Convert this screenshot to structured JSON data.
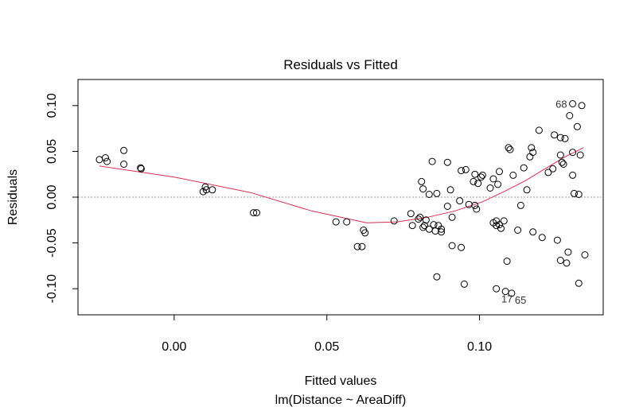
{
  "chart_data": {
    "type": "scatter",
    "title": "Residuals vs Fitted",
    "xlabel": "Fitted values",
    "subtitle": "lm(Distance ~ AreaDiff)",
    "ylabel": "Residuals",
    "xlim": [
      -0.0315,
      0.1405
    ],
    "ylim": [
      -0.1285,
      0.1285
    ],
    "x_ticks": [
      0.0,
      0.05,
      0.1
    ],
    "x_tick_labels": [
      "0.00",
      "0.05",
      "0.10"
    ],
    "y_ticks": [
      -0.1,
      -0.05,
      0.0,
      0.05,
      0.1
    ],
    "y_tick_labels": [
      "-0.10",
      "-0.05",
      "0.00",
      "0.05",
      "0.10"
    ],
    "reference_line_y": 0,
    "points": [
      [
        -0.0245,
        0.041
      ],
      [
        -0.0225,
        0.043
      ],
      [
        -0.022,
        0.039
      ],
      [
        -0.0165,
        0.051
      ],
      [
        -0.0165,
        0.036
      ],
      [
        -0.011,
        0.032
      ],
      [
        -0.0108,
        0.031
      ],
      [
        0.0095,
        0.006
      ],
      [
        0.0105,
        0.008
      ],
      [
        0.0102,
        0.011
      ],
      [
        0.0125,
        0.008
      ],
      [
        0.026,
        -0.017
      ],
      [
        0.027,
        -0.017
      ],
      [
        0.053,
        -0.027
      ],
      [
        0.0565,
        -0.027
      ],
      [
        0.06,
        -0.054
      ],
      [
        0.0615,
        -0.054
      ],
      [
        0.0625,
        -0.039
      ],
      [
        0.062,
        -0.036
      ],
      [
        0.072,
        -0.026
      ],
      [
        0.0775,
        -0.018
      ],
      [
        0.078,
        -0.031
      ],
      [
        0.08,
        -0.024
      ],
      [
        0.0805,
        -0.022
      ],
      [
        0.0815,
        -0.033
      ],
      [
        0.0825,
        -0.025
      ],
      [
        0.082,
        -0.031
      ],
      [
        0.0815,
        0.009
      ],
      [
        0.081,
        0.017
      ],
      [
        0.0835,
        0.003
      ],
      [
        0.0835,
        -0.035
      ],
      [
        0.0845,
        0.039
      ],
      [
        0.085,
        -0.03
      ],
      [
        0.0855,
        -0.037
      ],
      [
        0.086,
        0.004
      ],
      [
        0.0865,
        -0.031
      ],
      [
        0.0875,
        -0.038
      ],
      [
        0.0875,
        -0.035
      ],
      [
        0.086,
        -0.087
      ],
      [
        0.0895,
        0.038
      ],
      [
        0.0895,
        -0.01
      ],
      [
        0.0905,
        0.008
      ],
      [
        0.091,
        -0.022
      ],
      [
        0.091,
        -0.053
      ],
      [
        0.0935,
        -0.004
      ],
      [
        0.094,
        0.029
      ],
      [
        0.0955,
        0.03
      ],
      [
        0.0965,
        -0.008
      ],
      [
        0.094,
        -0.055
      ],
      [
        0.095,
        -0.095
      ],
      [
        0.098,
        0.017
      ],
      [
        0.0985,
        -0.009
      ],
      [
        0.0985,
        0.025
      ],
      [
        0.099,
        -0.013
      ],
      [
        0.0995,
        0.015
      ],
      [
        0.1005,
        0.022
      ],
      [
        0.101,
        0.024
      ],
      [
        0.1035,
        0.01
      ],
      [
        0.1045,
        0.02
      ],
      [
        0.1045,
        -0.028
      ],
      [
        0.1055,
        -0.026
      ],
      [
        0.1055,
        -0.031
      ],
      [
        0.106,
        0.014
      ],
      [
        0.1065,
        0.028
      ],
      [
        0.1065,
        -0.03
      ],
      [
        0.107,
        -0.034
      ],
      [
        0.108,
        -0.026
      ],
      [
        0.109,
        -0.07
      ],
      [
        0.1085,
        -0.103
      ],
      [
        0.1055,
        -0.1
      ],
      [
        0.1095,
        0.054
      ],
      [
        0.11,
        0.052
      ],
      [
        0.111,
        0.024
      ],
      [
        0.1125,
        -0.036
      ],
      [
        0.1135,
        -0.009
      ],
      [
        0.1145,
        0.032
      ],
      [
        0.1155,
        0.008
      ],
      [
        0.1165,
        0.044
      ],
      [
        0.117,
        0.054
      ],
      [
        0.1175,
        0.049
      ],
      [
        0.1175,
        -0.038
      ],
      [
        0.1195,
        0.073
      ],
      [
        0.1205,
        -0.044
      ],
      [
        0.1225,
        0.027
      ],
      [
        0.124,
        0.031
      ],
      [
        0.1245,
        0.068
      ],
      [
        0.1255,
        -0.047
      ],
      [
        0.1265,
        -0.069
      ],
      [
        0.1265,
        0.065
      ],
      [
        0.1265,
        0.046
      ],
      [
        0.127,
        0.038
      ],
      [
        0.1275,
        0.036
      ],
      [
        0.128,
        0.064
      ],
      [
        0.1285,
        -0.072
      ],
      [
        0.129,
        -0.06
      ],
      [
        0.1295,
        0.089
      ],
      [
        0.1305,
        0.049
      ],
      [
        0.1305,
        0.024
      ],
      [
        0.131,
        0.004
      ],
      [
        0.132,
        0.077
      ],
      [
        0.1325,
        0.003
      ],
      [
        0.133,
        0.046
      ],
      [
        0.1335,
        0.1
      ],
      [
        0.1345,
        -0.063
      ],
      [
        0.1325,
        -0.094
      ],
      [
        0.1305,
        0.102
      ],
      [
        0.1105,
        -0.105
      ]
    ],
    "smooth_line": [
      [
        -0.0245,
        0.034
      ],
      [
        0.0,
        0.022
      ],
      [
        0.025,
        0.005
      ],
      [
        0.045,
        -0.015
      ],
      [
        0.063,
        -0.028
      ],
      [
        0.073,
        -0.027
      ],
      [
        0.083,
        -0.022
      ],
      [
        0.092,
        -0.015
      ],
      [
        0.101,
        -0.005
      ],
      [
        0.108,
        0.006
      ],
      [
        0.115,
        0.018
      ],
      [
        0.122,
        0.032
      ],
      [
        0.128,
        0.044
      ],
      [
        0.134,
        0.054
      ]
    ],
    "annotations": [
      {
        "label": "68",
        "x": 0.1305,
        "y": 0.102
      },
      {
        "label": "17",
        "x": 0.1085,
        "y": -0.103
      },
      {
        "label": "65",
        "x": 0.1105,
        "y": -0.105
      }
    ],
    "colors": {
      "points": "#000000",
      "smooth": "#d73050",
      "reference": "#999999"
    }
  }
}
